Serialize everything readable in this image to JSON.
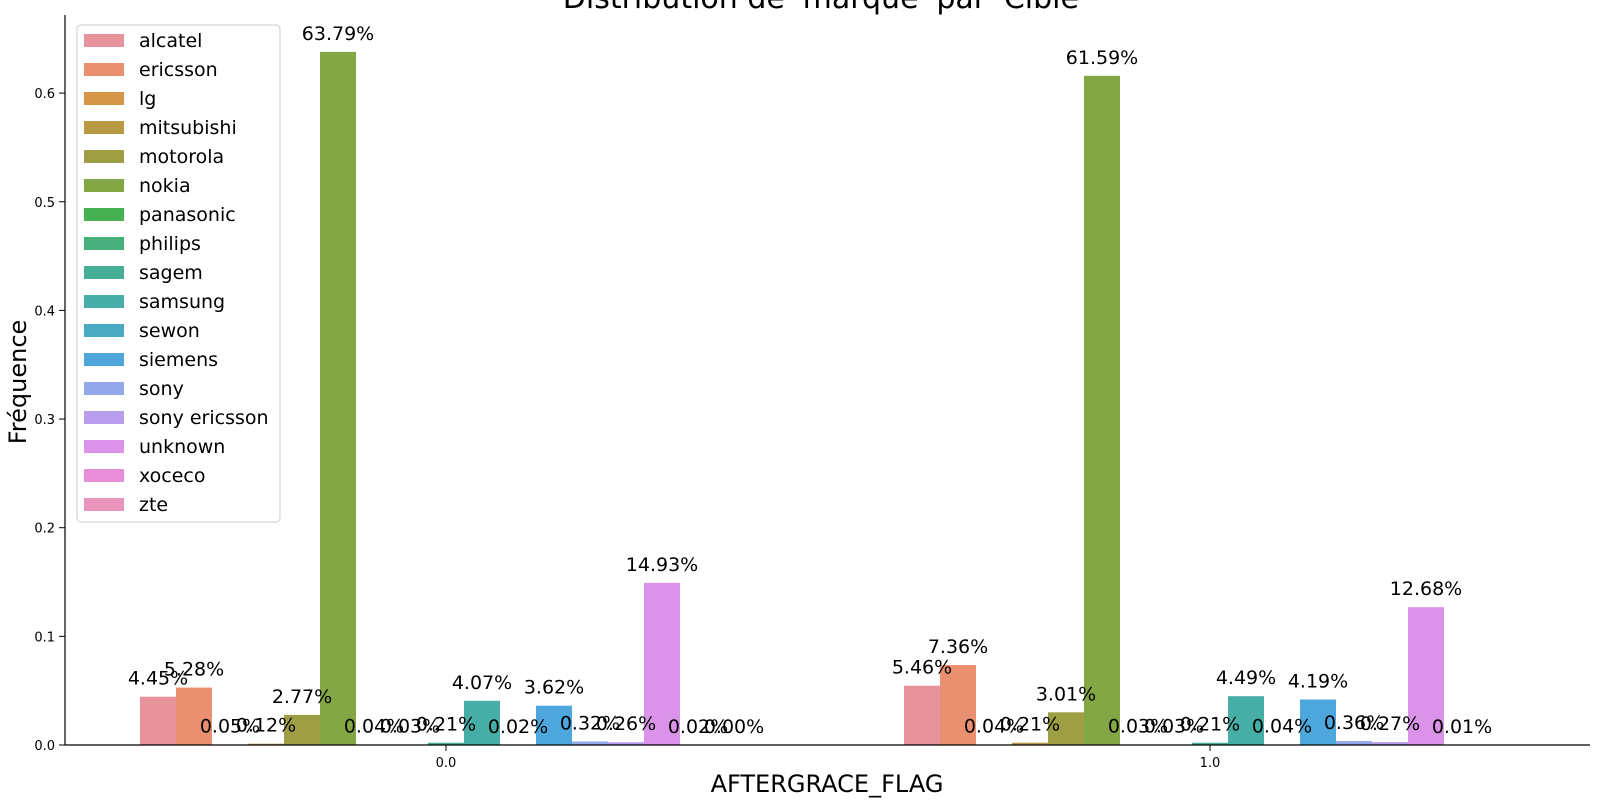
{
  "chart_data": {
    "type": "bar",
    "title": "Distribution de 'marque' par 'Cible'",
    "xlabel": "AFTERGRACE_FLAG",
    "ylabel": "Fréquence",
    "categories": [
      "0.0",
      "1.0"
    ],
    "ylim": [
      0,
      0.67
    ],
    "yticks": [
      "0.0",
      "0.1",
      "0.2",
      "0.3",
      "0.4",
      "0.5",
      "0.6"
    ],
    "grid": false,
    "legend_position": "top-left",
    "series": [
      {
        "name": "alcatel",
        "color": "#e8939c",
        "values": [
          0.0445,
          0.0546
        ],
        "labels": [
          "4.45%",
          "5.46%"
        ]
      },
      {
        "name": "ericsson",
        "color": "#e8906f",
        "values": [
          0.0528,
          0.0736
        ],
        "labels": [
          "5.28%",
          "7.36%"
        ]
      },
      {
        "name": "lg",
        "color": "#d59648",
        "values": [
          0.0005,
          0.0004
        ],
        "labels": [
          "0.05%",
          "0.04%"
        ]
      },
      {
        "name": "mitsubishi",
        "color": "#b99a44",
        "values": [
          0.0012,
          0.0021
        ],
        "labels": [
          "0.12%",
          "0.21%"
        ]
      },
      {
        "name": "motorola",
        "color": "#9e9f44",
        "values": [
          0.0277,
          0.0301
        ],
        "labels": [
          "2.77%",
          "3.01%"
        ]
      },
      {
        "name": "nokia",
        "color": "#83a745",
        "values": [
          0.6379,
          0.6159
        ],
        "labels": [
          "63.79%",
          "61.59%"
        ]
      },
      {
        "name": "panasonic",
        "color": "#46b150",
        "values": [
          0.0004,
          0.0003
        ],
        "labels": [
          "0.04%",
          "0.03%"
        ]
      },
      {
        "name": "philips",
        "color": "#47b07d",
        "values": [
          0.0003,
          0.0003
        ],
        "labels": [
          "0.03%",
          "0.03%"
        ]
      },
      {
        "name": "sagem",
        "color": "#46ae97",
        "values": [
          0.0021,
          0.0021
        ],
        "labels": [
          "0.21%",
          "0.21%"
        ]
      },
      {
        "name": "samsung",
        "color": "#47ada7",
        "values": [
          0.0407,
          0.0449
        ],
        "labels": [
          "4.07%",
          "4.49%"
        ]
      },
      {
        "name": "sewon",
        "color": "#4aaabf",
        "values": [
          0.0002,
          0.0004
        ],
        "labels": [
          "0.02%",
          "0.04%"
        ]
      },
      {
        "name": "siemens",
        "color": "#4da7dc",
        "values": [
          0.0362,
          0.0419
        ],
        "labels": [
          "3.62%",
          "4.19%"
        ]
      },
      {
        "name": "sony",
        "color": "#93a8ea",
        "values": [
          0.0032,
          0.0036
        ],
        "labels": [
          "0.32%",
          "0.36%"
        ]
      },
      {
        "name": "sony ericsson",
        "color": "#b89ded",
        "values": [
          0.0026,
          0.0027
        ],
        "labels": [
          "0.26%",
          "0.27%"
        ]
      },
      {
        "name": "unknown",
        "color": "#db93ea",
        "values": [
          0.1493,
          0.1268
        ],
        "labels": [
          "14.93%",
          "12.68%"
        ]
      },
      {
        "name": "xoceco",
        "color": "#e88ed9",
        "values": [
          0.0002,
          0.0001
        ],
        "labels": [
          "0.02%",
          "0.01%"
        ]
      },
      {
        "name": "zte",
        "color": "#e994bb",
        "values": [
          0.0,
          0.0
        ],
        "labels": [
          "0.00%",
          ""
        ]
      }
    ]
  }
}
